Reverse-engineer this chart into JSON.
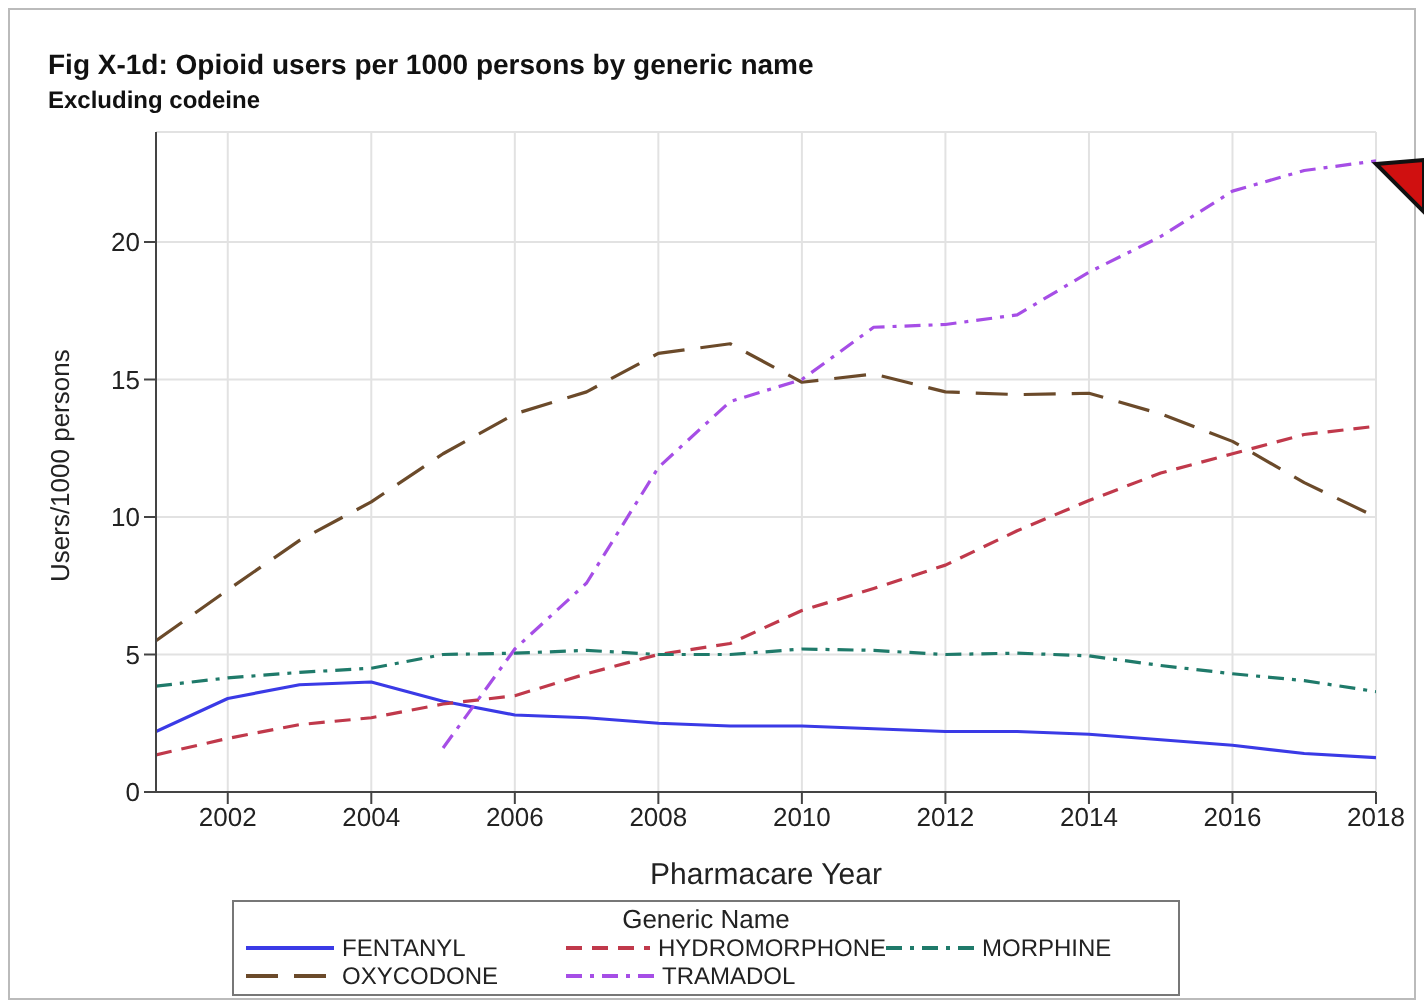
{
  "chart_data": {
    "type": "line",
    "title": "Fig X-1d: Opioid users per 1000 persons by generic name",
    "subtitle": "Excluding codeine",
    "xlabel": "Pharmacare Year",
    "ylabel": "Users/1000 persons",
    "legend_title": "Generic Name",
    "x": [
      2001,
      2002,
      2003,
      2004,
      2005,
      2006,
      2007,
      2008,
      2009,
      2010,
      2011,
      2012,
      2013,
      2014,
      2015,
      2016,
      2017,
      2018
    ],
    "series": [
      {
        "name": "FENTANYL",
        "color": "#3a3ae6",
        "line_style": "solid",
        "values": [
          2.2,
          3.4,
          3.9,
          4.0,
          3.3,
          2.8,
          2.7,
          2.5,
          2.4,
          2.4,
          2.3,
          2.2,
          2.2,
          2.1,
          1.9,
          1.7,
          1.4,
          1.25
        ]
      },
      {
        "name": "HYDROMORPHONE",
        "color": "#c0394b",
        "line_style": "dashed",
        "values": [
          1.35,
          1.95,
          2.45,
          2.7,
          3.2,
          3.5,
          4.3,
          5.0,
          5.4,
          6.6,
          7.4,
          8.25,
          9.5,
          10.6,
          11.6,
          12.3,
          13.0,
          13.3
        ]
      },
      {
        "name": "MORPHINE",
        "color": "#1f7a6a",
        "line_style": "dashdot",
        "values": [
          3.85,
          4.15,
          4.35,
          4.5,
          5.0,
          5.05,
          5.15,
          5.0,
          5.0,
          5.2,
          5.15,
          5.0,
          5.05,
          4.95,
          4.6,
          4.3,
          4.05,
          3.65
        ]
      },
      {
        "name": "OXYCODONE",
        "color": "#6b4a2a",
        "line_style": "longdash",
        "values": [
          5.5,
          7.35,
          9.15,
          10.55,
          12.3,
          13.75,
          14.55,
          15.95,
          16.3,
          14.9,
          15.2,
          14.55,
          14.45,
          14.5,
          13.75,
          12.75,
          11.25,
          10.0
        ]
      },
      {
        "name": "TRAMADOL",
        "color": "#a64ee6",
        "line_style": "dashdot",
        "values": [
          null,
          null,
          null,
          null,
          1.6,
          5.2,
          7.6,
          11.8,
          14.2,
          15.0,
          16.9,
          17.0,
          17.35,
          18.9,
          20.2,
          21.85,
          22.6,
          22.95
        ]
      }
    ],
    "xlim": [
      2001,
      2018
    ],
    "xticks": [
      2002,
      2004,
      2006,
      2008,
      2010,
      2012,
      2014,
      2016,
      2018
    ],
    "ylim": [
      0,
      24
    ],
    "yticks": [
      0,
      5,
      10,
      15,
      20
    ],
    "grid": true,
    "legend": "bottom",
    "marker": "none"
  }
}
